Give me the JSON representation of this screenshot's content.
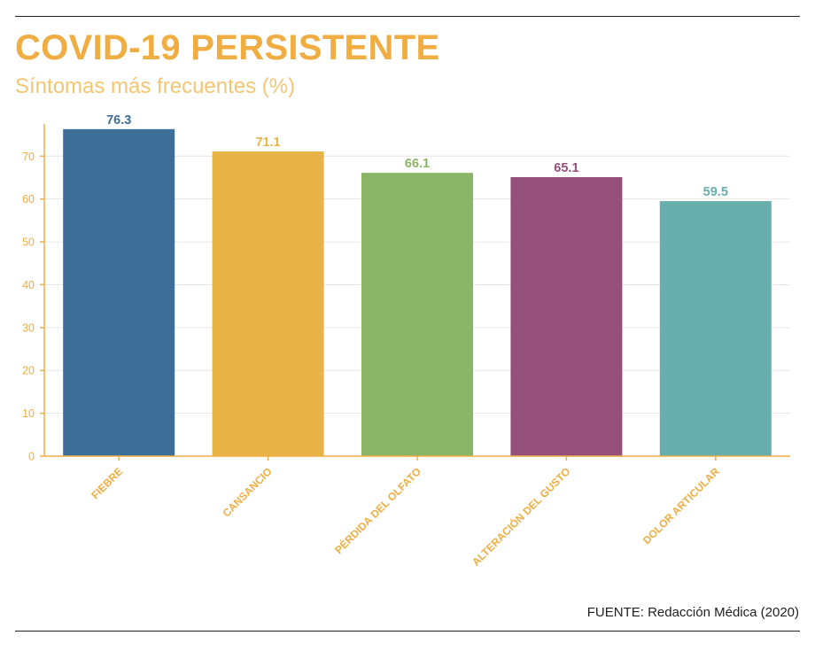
{
  "header": {
    "title": "COVID-19 PERSISTENTE",
    "subtitle": "Síntomas más frecuentes (%)"
  },
  "footer": {
    "source": "FUENTE: Redacción Médica (2020)"
  },
  "colors": {
    "accent": "#f0ad42",
    "bars": [
      "#3c6e98",
      "#e8b448",
      "#8bb566",
      "#944f7a",
      "#67afad"
    ],
    "grid": "#e6e6e6"
  },
  "chart_data": {
    "type": "bar",
    "title": "COVID-19 PERSISTENTE",
    "subtitle": "Síntomas más frecuentes (%)",
    "xlabel": "",
    "ylabel": "",
    "categories": [
      "FIEBRE",
      "CANSANCIO",
      "PÉRDIDA DEL OLFATO",
      "ALTERACIÓN DEL GUSTO",
      "DOLOR ARTICULAR"
    ],
    "values": [
      76.3,
      71.1,
      66.1,
      65.1,
      59.5
    ],
    "value_labels": [
      "76.3",
      "71.1",
      "66.1",
      "65.1",
      "59.5"
    ],
    "ylim": [
      0,
      77.5
    ],
    "yticks": [
      0,
      10,
      20,
      30,
      40,
      50,
      60,
      70
    ],
    "grid": true,
    "legend": "none"
  }
}
